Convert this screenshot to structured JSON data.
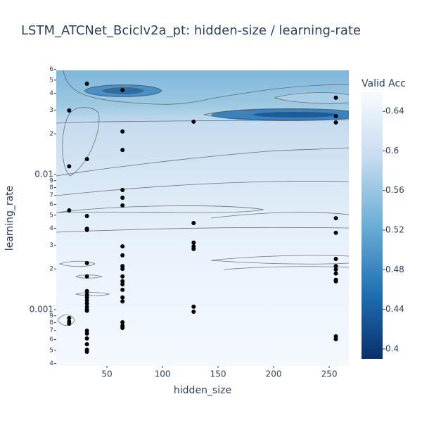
{
  "chart_data": {
    "type": "contour",
    "title": "LSTM_ATCNet_BcicIv2a_pt: hidden-size / learning-rate",
    "xlabel": "hidden_size",
    "ylabel": "learning_rate",
    "colorbar_title": "Valid Acc",
    "xlim": [
      4.4,
      267.7
    ],
    "xticks": [
      50,
      100,
      150,
      200,
      250
    ],
    "ylim": [
      0.000383,
      0.059
    ],
    "log_y": true,
    "yticks": [
      {
        "value": 0.06,
        "label": "6"
      },
      {
        "value": 0.05,
        "label": "5"
      },
      {
        "value": 0.04,
        "label": "4"
      },
      {
        "value": 0.03,
        "label": "3"
      },
      {
        "value": 0.02,
        "label": "2"
      },
      0.01,
      {
        "value": 0.009,
        "label": "9"
      },
      {
        "value": 0.008,
        "label": "8"
      },
      {
        "value": 0.007,
        "label": "7"
      },
      {
        "value": 0.006,
        "label": "6"
      },
      {
        "value": 0.005,
        "label": "5"
      },
      {
        "value": 0.004,
        "label": "4"
      },
      {
        "value": 0.003,
        "label": "3"
      },
      {
        "value": 0.002,
        "label": "2"
      },
      0.001,
      {
        "value": 0.0009,
        "label": "9"
      },
      {
        "value": 0.0008,
        "label": "8"
      },
      {
        "value": 0.0007,
        "label": "7"
      },
      {
        "value": 0.0006,
        "label": "6"
      },
      {
        "value": 0.0005,
        "label": "5"
      },
      {
        "value": 0.0004,
        "label": "4"
      }
    ],
    "clim": [
      0.39,
      0.66
    ],
    "cticks": [
      0.4,
      0.44,
      0.48,
      0.52,
      0.56,
      0.6,
      0.64
    ],
    "colorscale": [
      "#08306b",
      "#2171b5",
      "#6baed6",
      "#c6dbef",
      "#f7fbff"
    ],
    "point_color": "#000000",
    "x": [
      16,
      16,
      16,
      16,
      16,
      16,
      32,
      32,
      32,
      32,
      32,
      32,
      32,
      32,
      32,
      32,
      32,
      32,
      32,
      32,
      32,
      32,
      32,
      32,
      32,
      32,
      32,
      64,
      64,
      64,
      64,
      64,
      64,
      64,
      64,
      64,
      64,
      64,
      64,
      64,
      64,
      64,
      64,
      64,
      64,
      64,
      128,
      128,
      128,
      128,
      128,
      128,
      128,
      256,
      256,
      256,
      256,
      256,
      256,
      256,
      256,
      256,
      256,
      256,
      256,
      256
    ],
    "y": [
      0.0115,
      0.0298,
      0.00542,
      0.000866,
      0.000815,
      0.000787,
      0.047,
      0.013,
      0.00493,
      0.00397,
      0.00388,
      0.00221,
      0.00176,
      0.00137,
      0.00129,
      0.00123,
      0.00117,
      0.00111,
      0.00105,
      0.001,
      0.00098,
      0.000698,
      0.000665,
      0.000611,
      0.000555,
      0.000505,
      0.000487,
      0.0422,
      0.0208,
      0.0152,
      0.00768,
      0.00673,
      0.0059,
      0.00294,
      0.00252,
      0.0021,
      0.002,
      0.00176,
      0.00162,
      0.00154,
      0.0014,
      0.00123,
      0.00115,
      0.000806,
      0.000759,
      0.000732,
      0.0246,
      0.00437,
      0.00313,
      0.00294,
      0.00281,
      0.00105,
      0.000964,
      0.037,
      0.027,
      0.0243,
      0.00475,
      0.0037,
      0.00237,
      0.0021,
      0.00198,
      0.00185,
      0.00166,
      0.00162,
      0.000634,
      0.000604
    ]
  }
}
